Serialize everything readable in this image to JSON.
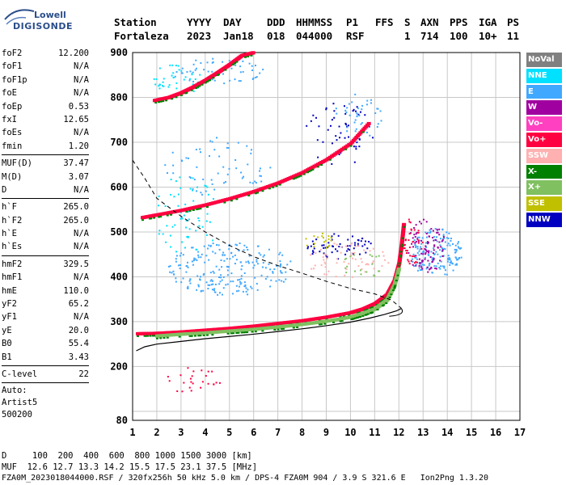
{
  "logo": {
    "line1": "Lowell",
    "line2": "DIGISONDE"
  },
  "header": {
    "labels": [
      "Station",
      "YYYY",
      "DAY",
      "DDD",
      "HHMMSS",
      "P1",
      "FFS",
      "S",
      "AXN",
      "PPS",
      "IGA",
      "PS"
    ],
    "values": [
      "Fortaleza",
      "2023",
      "Jan18",
      "018",
      "044000",
      "RSF",
      "",
      "1",
      "714",
      "100",
      "10+",
      "11"
    ]
  },
  "params": {
    "group1": [
      {
        "name": "foF2",
        "value": "12.200"
      },
      {
        "name": "foF1",
        "value": "N/A"
      },
      {
        "name": "foF1p",
        "value": "N/A"
      },
      {
        "name": "foE",
        "value": "N/A"
      },
      {
        "name": "foEp",
        "value": "0.53"
      },
      {
        "name": "fxI",
        "value": "12.65"
      },
      {
        "name": "foEs",
        "value": "N/A"
      },
      {
        "name": "fmin",
        "value": "1.20"
      }
    ],
    "group2": [
      {
        "name": "MUF(D)",
        "value": "37.47"
      },
      {
        "name": "M(D)",
        "value": "3.07"
      },
      {
        "name": "D",
        "value": "N/A"
      }
    ],
    "group3": [
      {
        "name": "h`F",
        "value": "265.0"
      },
      {
        "name": "h`F2",
        "value": "265.0"
      },
      {
        "name": "h`E",
        "value": "N/A"
      },
      {
        "name": "h`Es",
        "value": "N/A"
      }
    ],
    "group4": [
      {
        "name": "hmF2",
        "value": "329.5"
      },
      {
        "name": "hmF1",
        "value": "N/A"
      },
      {
        "name": "hmE",
        "value": "110.0"
      },
      {
        "name": "yF2",
        "value": "65.2"
      },
      {
        "name": "yF1",
        "value": "N/A"
      },
      {
        "name": "yE",
        "value": "20.0"
      },
      {
        "name": "B0",
        "value": "55.4"
      },
      {
        "name": "B1",
        "value": "3.43"
      }
    ],
    "clevel": {
      "name": "C-level",
      "value": "22"
    },
    "auto_lines": [
      "Auto:",
      "Artist5",
      "500200"
    ]
  },
  "legend": [
    {
      "label": "NoVal",
      "color": "#808080"
    },
    {
      "label": "NNE",
      "color": "#00e0ff"
    },
    {
      "label": "E",
      "color": "#40a8ff"
    },
    {
      "label": "W",
      "color": "#a000a0"
    },
    {
      "label": "Vo-",
      "color": "#ff40c0"
    },
    {
      "label": "Vo+",
      "color": "#ff0040"
    },
    {
      "label": "SSW",
      "color": "#ffb0b0"
    },
    {
      "label": "X-",
      "color": "#008000"
    },
    {
      "label": "X+",
      "color": "#80c060"
    },
    {
      "label": "SSE",
      "color": "#c0c000"
    },
    {
      "label": "NNW",
      "color": "#0000c0"
    }
  ],
  "footer": {
    "d_row": "D     100  200  400  600  800 1000 1500 3000 [km]",
    "muf_row": "MUF  12.6 12.7 13.3 14.2 15.5 17.5 23.1 37.5 [MHz]",
    "file_row": "FZA0M_2023018044000.RSF / 320fx256h 50 kHz 5.0 km / DPS-4 FZA0M 904 / 3.9 S 321.6 E   Ion2Png 1.3.20"
  },
  "chart_data": {
    "type": "scatter",
    "xlim": [
      1,
      17
    ],
    "ylim": [
      80,
      900
    ],
    "x_ticks": [
      "1",
      "2",
      "3",
      "4",
      "5",
      "6",
      "7",
      "8",
      "9",
      "10",
      "11",
      "12",
      "13",
      "14",
      "15",
      "16",
      "17"
    ],
    "y_ticks": [
      "200",
      "300",
      "400",
      "500",
      "600",
      "700",
      "800",
      "900"
    ],
    "y_tick_values": [
      200,
      300,
      400,
      500,
      600,
      700,
      800,
      900
    ],
    "bottom_tick_label": "80",
    "grid": true,
    "series": [
      {
        "color": "#ff0040",
        "points": [
          [
            1.2,
            273
          ],
          [
            2,
            274
          ],
          [
            3,
            277
          ],
          [
            4,
            281
          ],
          [
            5,
            285
          ],
          [
            6,
            290
          ],
          [
            7,
            296
          ],
          [
            8,
            302
          ],
          [
            9,
            310
          ],
          [
            10,
            320
          ],
          [
            10.5,
            328
          ],
          [
            11,
            340
          ],
          [
            11.5,
            360
          ],
          [
            11.8,
            390
          ],
          [
            12,
            430
          ],
          [
            12.1,
            470
          ],
          [
            12.2,
            520
          ]
        ]
      },
      {
        "color": "#80c060",
        "points": [
          [
            2,
            268
          ],
          [
            3,
            272
          ],
          [
            4,
            275
          ],
          [
            5,
            279
          ],
          [
            6,
            283
          ],
          [
            7,
            288
          ],
          [
            8,
            294
          ],
          [
            9,
            301
          ],
          [
            10,
            310
          ],
          [
            10.5,
            318
          ],
          [
            11,
            328
          ],
          [
            11.5,
            348
          ],
          [
            11.8,
            380
          ],
          [
            12,
            420
          ]
        ]
      },
      {
        "color": "#ff0040",
        "points": [
          [
            1.4,
            532
          ],
          [
            2,
            538
          ],
          [
            3,
            548
          ],
          [
            4,
            560
          ],
          [
            5,
            574
          ],
          [
            6,
            590
          ],
          [
            7,
            609
          ],
          [
            8,
            632
          ],
          [
            9,
            661
          ],
          [
            10,
            697
          ],
          [
            10.8,
            745
          ]
        ]
      },
      {
        "color": "#ff0040",
        "points": [
          [
            1.9,
            793
          ],
          [
            2.5,
            800
          ],
          [
            3,
            810
          ],
          [
            3.5,
            823
          ],
          [
            4,
            838
          ],
          [
            4.5,
            855
          ],
          [
            5,
            873
          ],
          [
            5.5,
            893
          ],
          [
            6,
            900
          ]
        ]
      }
    ],
    "profile_solid": [
      [
        1.15,
        235
      ],
      [
        1.5,
        244
      ],
      [
        2,
        250
      ],
      [
        3,
        256
      ],
      [
        4,
        262
      ],
      [
        5,
        267
      ],
      [
        6,
        272
      ],
      [
        7,
        278
      ],
      [
        8,
        284
      ],
      [
        9,
        291
      ],
      [
        10,
        299
      ],
      [
        10.8,
        308
      ],
      [
        11.4,
        316
      ],
      [
        11.9,
        324
      ],
      [
        12.1,
        329.5
      ]
    ],
    "profile_dashed": [
      [
        1,
        660
      ],
      [
        1.5,
        620
      ],
      [
        2,
        575
      ],
      [
        3,
        535
      ],
      [
        4,
        500
      ],
      [
        5,
        470
      ],
      [
        6,
        445
      ],
      [
        7,
        425
      ],
      [
        8,
        408
      ],
      [
        9,
        390
      ],
      [
        10,
        374
      ],
      [
        11,
        362
      ],
      [
        11.7,
        348
      ],
      [
        12.1,
        330
      ]
    ],
    "scatter_clusters": [
      {
        "color": "#40a8ff",
        "cx": 5,
        "cy": 420,
        "rx": 2.6,
        "ry": 60,
        "n": 220
      },
      {
        "color": "#00e0ff",
        "cx": 3.2,
        "cy": 540,
        "rx": 1.4,
        "ry": 90,
        "n": 60
      },
      {
        "color": "#40a8ff",
        "cx": 4.5,
        "cy": 650,
        "rx": 2.2,
        "ry": 70,
        "n": 60
      },
      {
        "color": "#0000c0",
        "cx": 9.5,
        "cy": 470,
        "rx": 1.4,
        "ry": 30,
        "n": 60
      },
      {
        "color": "#ffb0b0",
        "cx": 9.8,
        "cy": 440,
        "rx": 1.8,
        "ry": 40,
        "n": 60
      },
      {
        "color": "#40a8ff",
        "cx": 13.5,
        "cy": 455,
        "rx": 1.1,
        "ry": 55,
        "n": 160
      },
      {
        "color": "#a000a0",
        "cx": 13.1,
        "cy": 470,
        "rx": 0.8,
        "ry": 60,
        "n": 90
      },
      {
        "color": "#ff0040",
        "cx": 12.5,
        "cy": 480,
        "rx": 0.5,
        "ry": 55,
        "n": 40
      },
      {
        "color": "#0000c0",
        "cx": 9.5,
        "cy": 720,
        "rx": 1.5,
        "ry": 70,
        "n": 50
      },
      {
        "color": "#40a8ff",
        "cx": 10.3,
        "cy": 760,
        "rx": 1.0,
        "ry": 50,
        "n": 40
      },
      {
        "color": "#ff0040",
        "cx": 3.5,
        "cy": 170,
        "rx": 1.2,
        "ry": 30,
        "n": 25
      },
      {
        "color": "#00e0ff",
        "cx": 2.8,
        "cy": 840,
        "rx": 1.0,
        "ry": 40,
        "n": 40
      },
      {
        "color": "#40a8ff",
        "cx": 4.5,
        "cy": 860,
        "rx": 2.0,
        "ry": 30,
        "n": 50
      },
      {
        "color": "#c0c000",
        "cx": 8.7,
        "cy": 480,
        "rx": 0.6,
        "ry": 20,
        "n": 20
      },
      {
        "color": "#80c060",
        "cx": 10.5,
        "cy": 430,
        "rx": 1.0,
        "ry": 30,
        "n": 20
      }
    ]
  }
}
